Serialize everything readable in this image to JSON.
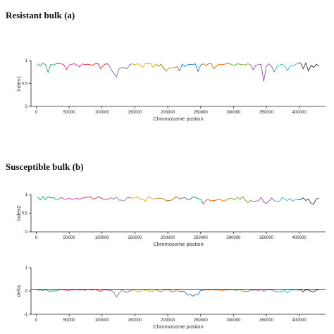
{
  "titles": {
    "a": "Resistant bulk (a)",
    "b": "Susceptible bulk (b)"
  },
  "colors": [
    "#1b9e77",
    "#e7298a",
    "#d62728",
    "#7570b3",
    "#e6ab02",
    "#a6761d",
    "#1f78b4",
    "#e66101",
    "#66a61e",
    "#984ea3",
    "#17becf",
    "#333333"
  ],
  "chart_data": [
    {
      "id": "panel1",
      "type": "line",
      "xlabel": "Chromosome postion",
      "ylabel": "index1",
      "xlim": [
        -8000,
        440000
      ],
      "ylim": [
        0,
        1
      ],
      "xticks": [
        0,
        50000,
        100000,
        150000,
        200000,
        250000,
        300000,
        350000,
        400000
      ],
      "yticks": [
        0,
        0.5,
        1
      ],
      "ytick_labels": [
        "0",
        "0.5",
        "1"
      ],
      "reference_line": null,
      "points": [
        [
          2000,
          0.93
        ],
        [
          6000,
          0.88
        ],
        [
          10000,
          0.95
        ],
        [
          14000,
          0.91
        ],
        [
          18000,
          0.74
        ],
        [
          22000,
          0.92
        ],
        [
          26000,
          0.9
        ],
        [
          30000,
          0.93
        ],
        [
          34000,
          0.93
        ],
        [
          38000,
          0.93
        ],
        [
          42000,
          0.91
        ],
        [
          46000,
          0.8
        ],
        [
          50000,
          0.9
        ],
        [
          54000,
          0.92
        ],
        [
          58000,
          0.93
        ],
        [
          62000,
          0.9
        ],
        [
          66000,
          0.86
        ],
        [
          70000,
          0.93
        ],
        [
          74000,
          0.91
        ],
        [
          78000,
          0.92
        ],
        [
          82000,
          0.91
        ],
        [
          86000,
          0.9
        ],
        [
          90000,
          0.93
        ],
        [
          94000,
          0.93
        ],
        [
          98000,
          0.82
        ],
        [
          102000,
          0.9
        ],
        [
          106000,
          0.93
        ],
        [
          110000,
          0.92
        ],
        [
          114000,
          0.8
        ],
        [
          118000,
          0.72
        ],
        [
          122000,
          0.64
        ],
        [
          126000,
          0.82
        ],
        [
          130000,
          0.85
        ],
        [
          134000,
          0.85
        ],
        [
          138000,
          0.82
        ],
        [
          142000,
          0.91
        ],
        [
          146000,
          0.93
        ],
        [
          150000,
          0.91
        ],
        [
          154000,
          0.93
        ],
        [
          158000,
          0.9
        ],
        [
          162000,
          0.85
        ],
        [
          166000,
          0.95
        ],
        [
          170000,
          0.93
        ],
        [
          174000,
          0.93
        ],
        [
          178000,
          0.85
        ],
        [
          182000,
          0.92
        ],
        [
          186000,
          0.88
        ],
        [
          190000,
          0.92
        ],
        [
          194000,
          0.83
        ],
        [
          198000,
          0.77
        ],
        [
          202000,
          0.84
        ],
        [
          206000,
          0.84
        ],
        [
          210000,
          0.85
        ],
        [
          214000,
          0.87
        ],
        [
          218000,
          0.77
        ],
        [
          222000,
          0.92
        ],
        [
          226000,
          0.87
        ],
        [
          230000,
          0.91
        ],
        [
          234000,
          0.92
        ],
        [
          238000,
          0.91
        ],
        [
          242000,
          0.93
        ],
        [
          246000,
          0.76
        ],
        [
          250000,
          0.9
        ],
        [
          254000,
          0.93
        ],
        [
          258000,
          0.89
        ],
        [
          262000,
          0.93
        ],
        [
          266000,
          0.93
        ],
        [
          270000,
          0.82
        ],
        [
          274000,
          0.88
        ],
        [
          278000,
          0.92
        ],
        [
          282000,
          0.91
        ],
        [
          286000,
          0.92
        ],
        [
          290000,
          0.93
        ],
        [
          294000,
          0.93
        ],
        [
          298000,
          0.91
        ],
        [
          302000,
          0.9
        ],
        [
          306000,
          0.93
        ],
        [
          310000,
          0.92
        ],
        [
          314000,
          0.91
        ],
        [
          318000,
          0.91
        ],
        [
          322000,
          0.93
        ],
        [
          326000,
          0.91
        ],
        [
          330000,
          0.8
        ],
        [
          334000,
          0.9
        ],
        [
          338000,
          0.91
        ],
        [
          342000,
          0.92
        ],
        [
          346000,
          0.55
        ],
        [
          350000,
          0.88
        ],
        [
          354000,
          0.93
        ],
        [
          358000,
          0.87
        ],
        [
          362000,
          0.75
        ],
        [
          366000,
          0.87
        ],
        [
          370000,
          0.9
        ],
        [
          374000,
          0.92
        ],
        [
          378000,
          0.88
        ],
        [
          382000,
          0.78
        ],
        [
          386000,
          0.88
        ],
        [
          390000,
          0.89
        ],
        [
          394000,
          0.91
        ],
        [
          398000,
          0.95
        ],
        [
          402000,
          0.95
        ],
        [
          406000,
          0.82
        ],
        [
          410000,
          0.95
        ],
        [
          414000,
          0.77
        ],
        [
          418000,
          0.9
        ],
        [
          422000,
          0.85
        ],
        [
          426000,
          0.92
        ],
        [
          430000,
          0.88
        ]
      ]
    },
    {
      "id": "panel2",
      "type": "line",
      "xlabel": "Chromosome postion",
      "ylabel": "index2",
      "xlim": [
        -8000,
        440000
      ],
      "ylim": [
        0,
        1
      ],
      "xticks": [
        0,
        50000,
        100000,
        150000,
        200000,
        250000,
        300000,
        350000,
        400000
      ],
      "yticks": [
        0,
        0.5,
        1
      ],
      "ytick_labels": [
        "0",
        "0.5",
        "1"
      ],
      "reference_line": null,
      "points": [
        [
          2000,
          0.94
        ],
        [
          6000,
          0.85
        ],
        [
          10000,
          0.95
        ],
        [
          14000,
          0.86
        ],
        [
          18000,
          0.94
        ],
        [
          22000,
          0.91
        ],
        [
          26000,
          0.92
        ],
        [
          30000,
          0.87
        ],
        [
          34000,
          0.87
        ],
        [
          38000,
          0.92
        ],
        [
          42000,
          0.88
        ],
        [
          46000,
          0.87
        ],
        [
          50000,
          0.9
        ],
        [
          54000,
          0.87
        ],
        [
          58000,
          0.88
        ],
        [
          62000,
          0.9
        ],
        [
          66000,
          0.87
        ],
        [
          70000,
          0.91
        ],
        [
          74000,
          0.91
        ],
        [
          78000,
          0.93
        ],
        [
          82000,
          0.94
        ],
        [
          86000,
          0.88
        ],
        [
          90000,
          0.89
        ],
        [
          94000,
          0.94
        ],
        [
          98000,
          0.91
        ],
        [
          102000,
          0.87
        ],
        [
          106000,
          0.87
        ],
        [
          110000,
          0.88
        ],
        [
          114000,
          0.91
        ],
        [
          118000,
          0.87
        ],
        [
          122000,
          0.93
        ],
        [
          126000,
          0.85
        ],
        [
          130000,
          0.85
        ],
        [
          134000,
          0.82
        ],
        [
          138000,
          0.91
        ],
        [
          142000,
          0.92
        ],
        [
          146000,
          0.9
        ],
        [
          150000,
          0.91
        ],
        [
          154000,
          0.94
        ],
        [
          158000,
          0.87
        ],
        [
          162000,
          0.88
        ],
        [
          166000,
          0.82
        ],
        [
          170000,
          0.93
        ],
        [
          174000,
          0.91
        ],
        [
          178000,
          0.88
        ],
        [
          182000,
          0.89
        ],
        [
          186000,
          0.9
        ],
        [
          190000,
          0.9
        ],
        [
          194000,
          0.88
        ],
        [
          198000,
          0.83
        ],
        [
          202000,
          0.84
        ],
        [
          206000,
          0.85
        ],
        [
          210000,
          0.91
        ],
        [
          214000,
          0.94
        ],
        [
          218000,
          0.88
        ],
        [
          222000,
          0.9
        ],
        [
          226000,
          0.92
        ],
        [
          230000,
          0.86
        ],
        [
          234000,
          0.87
        ],
        [
          238000,
          0.93
        ],
        [
          242000,
          0.92
        ],
        [
          246000,
          0.89
        ],
        [
          250000,
          0.87
        ],
        [
          254000,
          0.74
        ],
        [
          258000,
          0.85
        ],
        [
          262000,
          0.86
        ],
        [
          266000,
          0.83
        ],
        [
          270000,
          0.84
        ],
        [
          274000,
          0.85
        ],
        [
          278000,
          0.87
        ],
        [
          282000,
          0.85
        ],
        [
          286000,
          0.82
        ],
        [
          290000,
          0.86
        ],
        [
          294000,
          0.9
        ],
        [
          298000,
          0.89
        ],
        [
          302000,
          0.86
        ],
        [
          306000,
          0.93
        ],
        [
          310000,
          0.87
        ],
        [
          314000,
          0.94
        ],
        [
          318000,
          0.85
        ],
        [
          322000,
          0.78
        ],
        [
          326000,
          0.84
        ],
        [
          330000,
          0.81
        ],
        [
          334000,
          0.82
        ],
        [
          338000,
          0.84
        ],
        [
          342000,
          0.92
        ],
        [
          346000,
          0.8
        ],
        [
          350000,
          0.76
        ],
        [
          354000,
          0.83
        ],
        [
          358000,
          0.91
        ],
        [
          362000,
          0.83
        ],
        [
          366000,
          0.82
        ],
        [
          370000,
          0.82
        ],
        [
          374000,
          0.92
        ],
        [
          378000,
          0.87
        ],
        [
          382000,
          0.84
        ],
        [
          386000,
          0.89
        ],
        [
          390000,
          0.82
        ],
        [
          394000,
          0.86
        ],
        [
          398000,
          0.87
        ],
        [
          402000,
          0.86
        ],
        [
          406000,
          0.91
        ],
        [
          410000,
          0.84
        ],
        [
          414000,
          0.88
        ],
        [
          418000,
          0.76
        ],
        [
          422000,
          0.74
        ],
        [
          426000,
          0.88
        ],
        [
          430000,
          0.91
        ]
      ]
    },
    {
      "id": "panel3",
      "type": "line",
      "xlabel": "Chromosome postion",
      "ylabel": "delta",
      "xlim": [
        -8000,
        440000
      ],
      "ylim": [
        -1,
        1
      ],
      "xticks": [
        0,
        50000,
        100000,
        150000,
        200000,
        250000,
        300000,
        350000,
        400000
      ],
      "yticks": [
        -1,
        0,
        1
      ],
      "ytick_labels": [
        "-1",
        "0",
        "1"
      ],
      "reference_line": 0.08,
      "points": [
        [
          2000,
          0.03
        ],
        [
          6000,
          0.05
        ],
        [
          10000,
          0.01
        ],
        [
          14000,
          0.06
        ],
        [
          18000,
          0.0
        ],
        [
          22000,
          -0.01
        ],
        [
          26000,
          0.01
        ],
        [
          30000,
          0.0
        ],
        [
          34000,
          0.04
        ],
        [
          38000,
          0.07
        ],
        [
          42000,
          0.05
        ],
        [
          46000,
          0.03
        ],
        [
          50000,
          0.02
        ],
        [
          54000,
          0.05
        ],
        [
          58000,
          0.05
        ],
        [
          62000,
          0.07
        ],
        [
          66000,
          0.04
        ],
        [
          70000,
          0.06
        ],
        [
          74000,
          0.02
        ],
        [
          78000,
          0.08
        ],
        [
          82000,
          0.06
        ],
        [
          86000,
          0.05
        ],
        [
          90000,
          0.07
        ],
        [
          94000,
          0.02
        ],
        [
          98000,
          -0.02
        ],
        [
          102000,
          0.06
        ],
        [
          106000,
          0.06
        ],
        [
          110000,
          0.02
        ],
        [
          114000,
          0.03
        ],
        [
          118000,
          -0.07
        ],
        [
          122000,
          -0.25
        ],
        [
          126000,
          -0.1
        ],
        [
          130000,
          0.03
        ],
        [
          134000,
          -0.02
        ],
        [
          138000,
          -0.05
        ],
        [
          142000,
          0.0
        ],
        [
          146000,
          0.02
        ],
        [
          150000,
          0.04
        ],
        [
          154000,
          -0.04
        ],
        [
          158000,
          -0.02
        ],
        [
          162000,
          0.07
        ],
        [
          166000,
          0.02
        ],
        [
          170000,
          0.04
        ],
        [
          174000,
          -0.02
        ],
        [
          178000,
          -0.02
        ],
        [
          182000,
          0.07
        ],
        [
          186000,
          0.0
        ],
        [
          190000,
          -0.03
        ],
        [
          194000,
          0.03
        ],
        [
          198000,
          0.06
        ],
        [
          202000,
          0.05
        ],
        [
          206000,
          -0.03
        ],
        [
          210000,
          -0.02
        ],
        [
          214000,
          0.07
        ],
        [
          218000,
          -0.04
        ],
        [
          222000,
          0.0
        ],
        [
          226000,
          -0.04
        ],
        [
          230000,
          -0.17
        ],
        [
          234000,
          -0.14
        ],
        [
          238000,
          -0.22
        ],
        [
          242000,
          -0.16
        ],
        [
          246000,
          -0.13
        ],
        [
          250000,
          0.02
        ],
        [
          254000,
          0.02
        ],
        [
          258000,
          0.07
        ],
        [
          262000,
          0.04
        ],
        [
          266000,
          0.07
        ],
        [
          270000,
          0.05
        ],
        [
          274000,
          0.05
        ],
        [
          278000,
          0.05
        ],
        [
          282000,
          0.01
        ],
        [
          286000,
          0.04
        ],
        [
          290000,
          0.04
        ],
        [
          294000,
          0.05
        ],
        [
          298000,
          0.07
        ],
        [
          302000,
          0.03
        ],
        [
          306000,
          0.03
        ],
        [
          310000,
          0.06
        ],
        [
          314000,
          0.0
        ],
        [
          318000,
          -0.02
        ],
        [
          322000,
          -0.02
        ],
        [
          326000,
          0.04
        ],
        [
          330000,
          0.03
        ],
        [
          334000,
          0.05
        ],
        [
          338000,
          0.01
        ],
        [
          342000,
          0.08
        ],
        [
          346000,
          -0.02
        ],
        [
          350000,
          0.06
        ],
        [
          354000,
          0.06
        ],
        [
          358000,
          0.05
        ],
        [
          362000,
          0.0
        ],
        [
          366000,
          -0.02
        ],
        [
          370000,
          -0.03
        ],
        [
          374000,
          -0.03
        ],
        [
          378000,
          0.04
        ],
        [
          382000,
          -0.09
        ],
        [
          386000,
          0.04
        ],
        [
          390000,
          0.03
        ],
        [
          394000,
          0.06
        ],
        [
          398000,
          0.03
        ],
        [
          402000,
          0.06
        ],
        [
          406000,
          -0.04
        ],
        [
          410000,
          0.06
        ],
        [
          414000,
          0.04
        ],
        [
          418000,
          -0.02
        ],
        [
          422000,
          -0.04
        ],
        [
          426000,
          0.05
        ],
        [
          430000,
          0.06
        ]
      ]
    }
  ]
}
